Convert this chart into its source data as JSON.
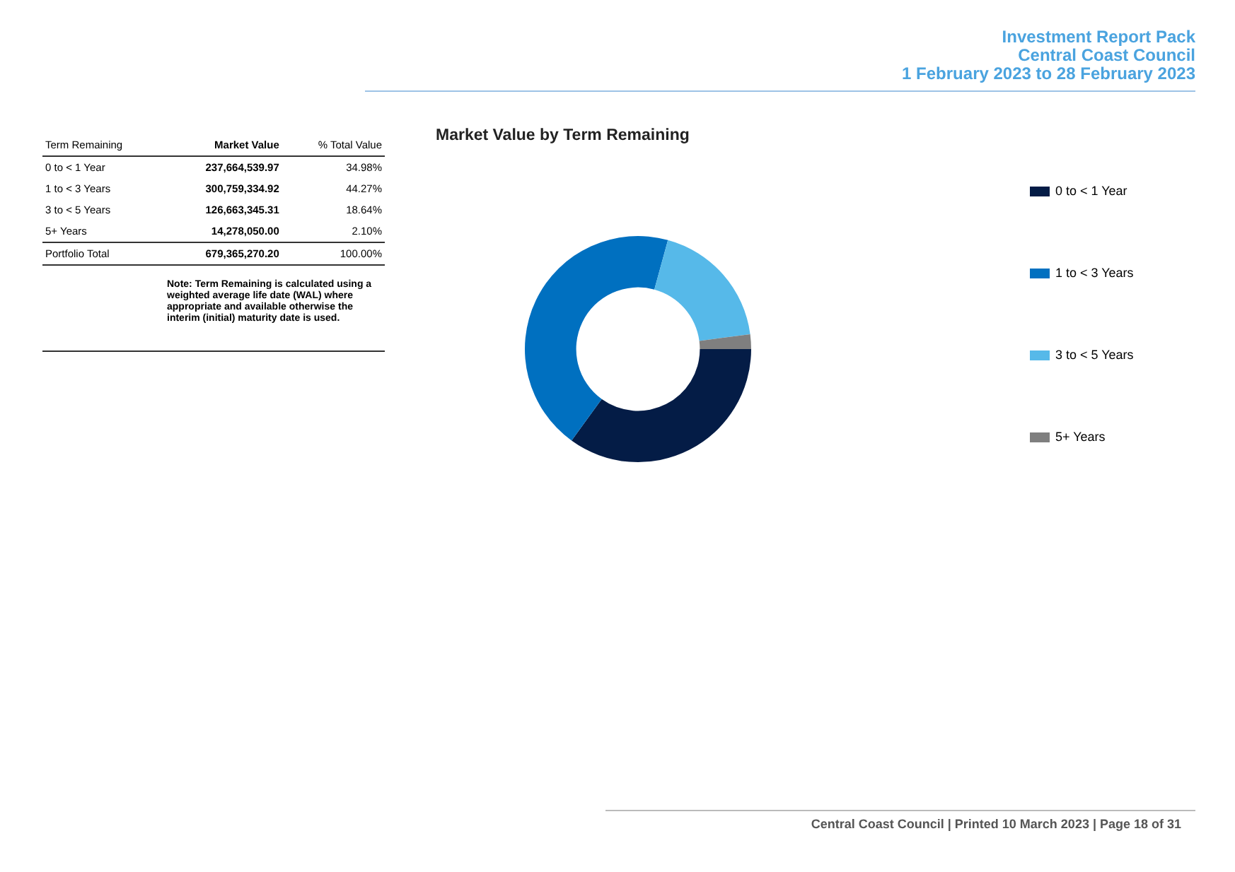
{
  "chart_data": [
    {
      "type": "other",
      "xlabel": "Term Remaining",
      "categories": [
        "0 to < 1 Year",
        "1 to < 3 Years",
        "3 to < 5 Years",
        "5+ Years",
        "Portfolio Total"
      ],
      "series": [
        {
          "name": "Market Value",
          "values": [
            237664539.97,
            300759334.92,
            126663345.31,
            14278050.0,
            679365270.2
          ],
          "value_labels": [
            "237,664,539.97",
            "300,759,334.92",
            "126,663,345.31",
            "14,278,050.00",
            "679,365,270.20"
          ]
        },
        {
          "name": "% Total Value",
          "values": [
            34.98,
            44.27,
            18.64,
            2.1,
            100.0
          ],
          "value_labels": [
            "34.98%",
            "44.27%",
            "18.64%",
            "2.10%",
            "100.00%"
          ]
        }
      ],
      "annotations": [
        "Investment Report Pack",
        "Central Coast Council",
        "1 February 2023 to 28 February 2023",
        "Note: Term Remaining is calculated using a weighted average life date (WAL) where appropriate and available otherwise the interim (initial) maturity date is used.",
        "Central Coast Council | Printed 10 March 2023 | Page 18 of 31"
      ]
    },
    {
      "type": "donut",
      "title": "Market Value by Term Remaining",
      "categories": [
        "0 to < 1 Year",
        "1 to < 3 Years",
        "3 to < 5 Years",
        "5+ Years"
      ],
      "values": [
        34.98,
        44.27,
        18.64,
        2.1
      ],
      "colors": [
        "#041c46",
        "#0070c0",
        "#56b9e9",
        "#7f7f7f"
      ],
      "legend": "right"
    }
  ]
}
